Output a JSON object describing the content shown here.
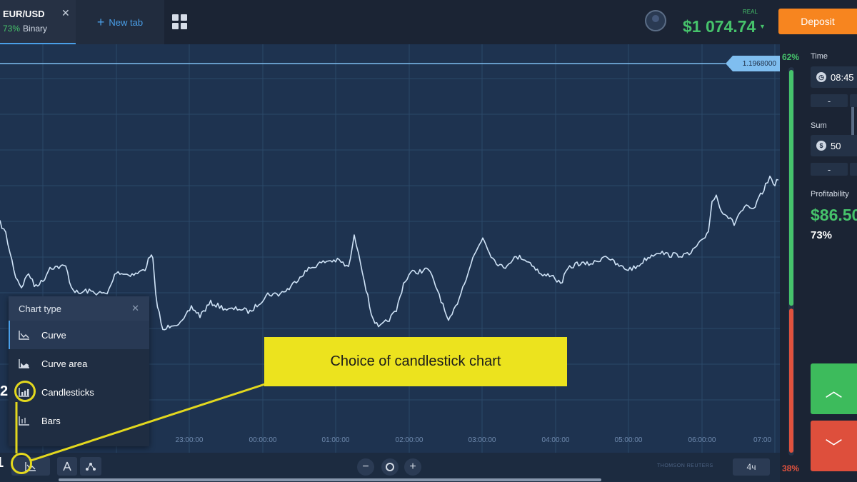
{
  "header": {
    "tab": {
      "title": "EUR/USD",
      "profit": "73%",
      "mode": "Binary"
    },
    "new_tab_label": "New tab",
    "balance_mode": "REAL",
    "balance": "$1 074.74",
    "deposit_label": "Deposit"
  },
  "chart": {
    "current_price": "1.1968000",
    "time_labels": [
      "23:00:00",
      "00:00:00",
      "01:00:00",
      "02:00:00",
      "03:00:00",
      "04:00:00",
      "05:00:00",
      "06:00:00",
      "07:00"
    ],
    "zoom": "4ч",
    "source": "THOMSON REUTERS"
  },
  "chart_type_menu": {
    "title": "Chart type",
    "items": [
      "Curve",
      "Curve area",
      "Candlesticks",
      "Bars"
    ]
  },
  "annotation": {
    "callout": "Choice of candlestick chart",
    "marker_1": "1",
    "marker_2": "2"
  },
  "trade_panel": {
    "meter_up": "62%",
    "meter_down": "38%",
    "time_label": "Time",
    "time_value": "08:45",
    "sum_label": "Sum",
    "sum_value": "50",
    "minus": "-",
    "profitability_label": "Profitability",
    "profit_amount": "$86.50",
    "profit_percent": "73%"
  },
  "colors": {
    "accent_green": "#46c36b",
    "accent_red": "#de4f3c",
    "deposit_orange": "#f7851f",
    "highlight_yellow": "#ece31e"
  }
}
